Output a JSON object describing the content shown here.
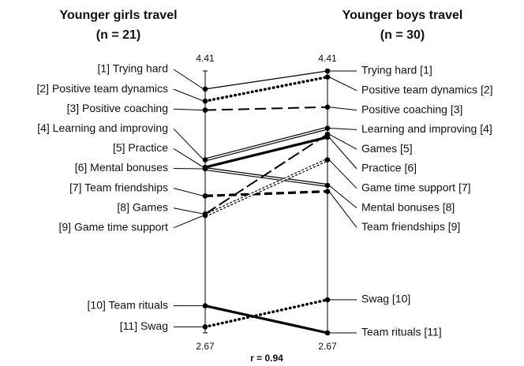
{
  "chart_data": {
    "type": "slope",
    "left_title": "Younger girls travel",
    "left_subtitle": "(n = 21)",
    "right_title": "Younger boys travel",
    "right_subtitle": "(n = 30)",
    "stat": "r = 0.94",
    "ylim": [
      2.67,
      4.41
    ],
    "yticks": [
      4.41,
      2.67
    ],
    "color": "#000000",
    "series": [
      {
        "left_label": "[1] Trying hard",
        "right_label": "Trying hard [1]",
        "left": 4.29,
        "right": 4.41,
        "style": "solid"
      },
      {
        "left_label": "[2] Positive team dynamics",
        "right_label": "Positive team dynamics [2]",
        "left": 4.21,
        "right": 4.37,
        "style": "dotted"
      },
      {
        "left_label": "[3] Positive coaching",
        "right_label": "Positive coaching [3]",
        "left": 4.15,
        "right": 4.17,
        "style": "dashed"
      },
      {
        "left_label": "[4] Learning and improving",
        "right_label": "Learning and improving [4]",
        "left": 3.82,
        "right": 4.03,
        "style": "double"
      },
      {
        "left_label": "[5] Practice",
        "right_label": "Practice [6]",
        "left": 3.77,
        "right": 3.97,
        "style": "thick"
      },
      {
        "left_label": "[6] Mental bonuses",
        "right_label": "Mental bonuses [8]",
        "left": 3.76,
        "right": 3.65,
        "style": "double"
      },
      {
        "left_label": "[7] Team friendships",
        "right_label": "Team friendships [9]",
        "left": 3.58,
        "right": 3.61,
        "style": "thick-dashed"
      },
      {
        "left_label": "[8] Games",
        "right_label": "Games [5]",
        "left": 3.46,
        "right": 3.99,
        "style": "long-dashed"
      },
      {
        "left_label": "[9] Game time support",
        "right_label": "Game time support [7]",
        "left": 3.45,
        "right": 3.82,
        "style": "double-dotted"
      },
      {
        "left_label": "[10] Team rituals",
        "right_label": "Team rituals [11]",
        "left": 2.85,
        "right": 2.67,
        "style": "thick"
      },
      {
        "left_label": "[11] Swag",
        "right_label": "Swag [10]",
        "left": 2.71,
        "right": 2.89,
        "style": "dotted"
      }
    ]
  }
}
